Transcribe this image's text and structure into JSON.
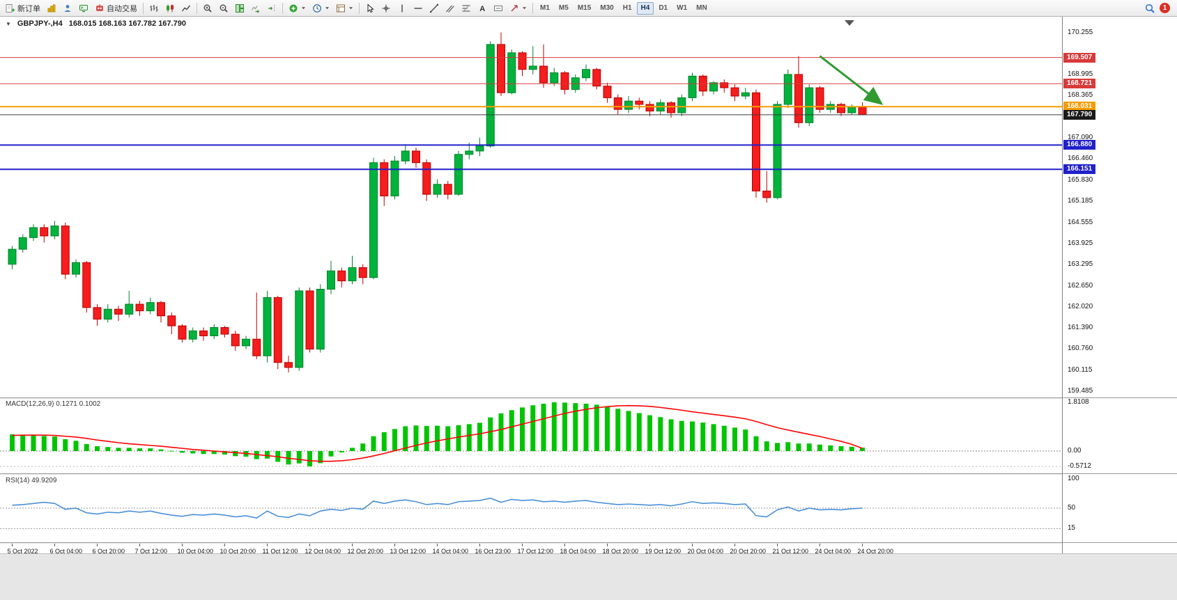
{
  "toolbar": {
    "new_order_label": "新订单",
    "auto_trading_label": "自动交易",
    "timeframes": [
      "M1",
      "M5",
      "M15",
      "M30",
      "H1",
      "H4",
      "D1",
      "W1",
      "MN"
    ],
    "active_timeframe": "H4",
    "notification_badge": "1"
  },
  "chart_data": {
    "type": "candlestick",
    "title_symbol": "GBPJPY-,H4",
    "ohlc_text": "168.015 168.163 167.782 167.790",
    "symbol": "GBPJPY-",
    "timeframe": "H4",
    "y_range": [
      159.3,
      170.65
    ],
    "x_label_step": 4,
    "x_labels": [
      "5 Oct 2022",
      "6 Oct 04:00",
      "6 Oct 20:00",
      "7 Oct 12:00",
      "10 Oct 04:00",
      "10 Oct 20:00",
      "11 Oct 12:00",
      "12 Oct 04:00",
      "12 Oct 20:00",
      "13 Oct 12:00",
      "14 Oct 04:00",
      "16 Oct 23:00",
      "17 Oct 12:00",
      "18 Oct 04:00",
      "18 Oct 20:00",
      "19 Oct 12:00",
      "20 Oct 04:00",
      "20 Oct 20:00",
      "21 Oct 12:00",
      "24 Oct 04:00",
      "24 Oct 20:00"
    ],
    "y_ticks": [
      "170.255",
      "168.995",
      "168.365",
      "167.090",
      "166.460",
      "165.830",
      "165.185",
      "164.555",
      "163.925",
      "163.295",
      "162.650",
      "162.020",
      "161.390",
      "160.760",
      "160.115",
      "159.485"
    ],
    "price_tags": [
      {
        "text": "169.507",
        "bg": "#d83a3a"
      },
      {
        "text": "168.721",
        "bg": "#d83a3a"
      },
      {
        "text": "168.031",
        "bg": "#f79c00"
      },
      {
        "text": "167.790",
        "bg": "#1a1a1a"
      },
      {
        "text": "166.880",
        "bg": "#2020cc"
      },
      {
        "text": "166.151",
        "bg": "#2020cc"
      }
    ],
    "h_lines": [
      {
        "price": 169.507,
        "color": "#d83a3a",
        "width": 1,
        "role": "resistance"
      },
      {
        "price": 168.721,
        "color": "#d83a3a",
        "width": 1,
        "role": "resistance"
      },
      {
        "price": 168.031,
        "color": "#f79c00",
        "width": 2,
        "role": "pivot"
      },
      {
        "price": 167.79,
        "color": "#3a3a3a",
        "width": 1,
        "role": "bid-price"
      },
      {
        "price": 166.88,
        "color": "#2020cc",
        "width": 2,
        "role": "support"
      },
      {
        "price": 166.151,
        "color": "#2020cc",
        "width": 2,
        "role": "support"
      }
    ],
    "arrow": {
      "from_i": 76,
      "from_p": 169.55,
      "to_i": 81.8,
      "to_p": 168.12,
      "color": "#2f9b2f"
    },
    "colors": {
      "bull": "#00b33c",
      "bull_border": "#00802b",
      "bear": "#f51d1d",
      "bear_border": "#b80000"
    },
    "candles": [
      [
        163.3,
        163.85,
        163.15,
        163.75
      ],
      [
        163.75,
        164.2,
        163.65,
        164.1
      ],
      [
        164.1,
        164.5,
        164.0,
        164.4
      ],
      [
        164.4,
        164.5,
        163.95,
        164.15
      ],
      [
        164.15,
        164.6,
        164.05,
        164.45
      ],
      [
        164.45,
        164.55,
        162.85,
        163.0
      ],
      [
        163.0,
        163.45,
        162.9,
        163.35
      ],
      [
        163.35,
        163.4,
        161.85,
        162.0
      ],
      [
        162.0,
        162.1,
        161.45,
        161.65
      ],
      [
        161.65,
        162.1,
        161.55,
        161.95
      ],
      [
        161.95,
        162.05,
        161.6,
        161.8
      ],
      [
        161.8,
        162.5,
        161.7,
        162.1
      ],
      [
        162.1,
        162.2,
        161.75,
        161.9
      ],
      [
        161.9,
        162.3,
        161.8,
        162.15
      ],
      [
        162.15,
        162.2,
        161.55,
        161.75
      ],
      [
        161.75,
        161.85,
        161.2,
        161.45
      ],
      [
        161.45,
        161.5,
        160.95,
        161.05
      ],
      [
        161.05,
        161.4,
        160.95,
        161.3
      ],
      [
        161.3,
        161.4,
        161.0,
        161.15
      ],
      [
        161.15,
        161.5,
        161.05,
        161.4
      ],
      [
        161.4,
        161.45,
        161.1,
        161.2
      ],
      [
        161.2,
        161.3,
        160.7,
        160.85
      ],
      [
        160.85,
        161.15,
        160.75,
        161.05
      ],
      [
        161.05,
        162.45,
        160.45,
        160.55
      ],
      [
        160.55,
        162.5,
        160.35,
        162.3
      ],
      [
        162.3,
        162.35,
        160.15,
        160.35
      ],
      [
        160.35,
        160.55,
        160.05,
        160.2
      ],
      [
        160.2,
        162.6,
        160.1,
        162.5
      ],
      [
        162.5,
        162.6,
        160.65,
        160.75
      ],
      [
        160.75,
        162.7,
        160.65,
        162.55
      ],
      [
        162.55,
        163.4,
        162.4,
        163.1
      ],
      [
        163.1,
        163.2,
        162.6,
        162.8
      ],
      [
        162.8,
        163.55,
        162.7,
        163.2
      ],
      [
        163.2,
        163.3,
        162.7,
        162.9
      ],
      [
        162.9,
        166.5,
        162.85,
        166.35
      ],
      [
        166.35,
        166.45,
        165.05,
        165.35
      ],
      [
        165.35,
        166.55,
        165.25,
        166.4
      ],
      [
        166.4,
        166.9,
        166.3,
        166.7
      ],
      [
        166.7,
        166.8,
        166.2,
        166.35
      ],
      [
        166.35,
        166.45,
        165.2,
        165.4
      ],
      [
        165.4,
        165.85,
        165.3,
        165.7
      ],
      [
        165.7,
        165.8,
        165.25,
        165.4
      ],
      [
        165.4,
        166.7,
        165.35,
        166.6
      ],
      [
        166.6,
        166.95,
        166.45,
        166.7
      ],
      [
        166.7,
        167.1,
        166.55,
        166.85
      ],
      [
        166.85,
        170.0,
        166.8,
        169.9
      ],
      [
        169.9,
        170.26,
        168.35,
        168.45
      ],
      [
        168.45,
        169.75,
        168.4,
        169.65
      ],
      [
        169.65,
        169.7,
        168.95,
        169.15
      ],
      [
        169.15,
        169.85,
        169.0,
        169.25
      ],
      [
        169.25,
        169.9,
        168.6,
        168.75
      ],
      [
        168.75,
        169.2,
        168.65,
        169.05
      ],
      [
        169.05,
        169.1,
        168.4,
        168.55
      ],
      [
        168.55,
        169.0,
        168.45,
        168.9
      ],
      [
        168.9,
        169.3,
        168.8,
        169.15
      ],
      [
        169.15,
        169.2,
        168.55,
        168.65
      ],
      [
        168.65,
        168.75,
        168.15,
        168.3
      ],
      [
        168.3,
        168.4,
        167.8,
        167.95
      ],
      [
        167.95,
        168.35,
        167.85,
        168.2
      ],
      [
        168.2,
        168.3,
        167.95,
        168.1
      ],
      [
        168.1,
        168.2,
        167.75,
        167.9
      ],
      [
        167.9,
        168.25,
        167.8,
        168.15
      ],
      [
        168.15,
        168.2,
        167.7,
        167.85
      ],
      [
        167.85,
        168.4,
        167.75,
        168.3
      ],
      [
        168.3,
        169.05,
        168.2,
        168.95
      ],
      [
        168.95,
        169.0,
        168.35,
        168.5
      ],
      [
        168.5,
        168.8,
        168.4,
        168.75
      ],
      [
        168.75,
        168.85,
        168.45,
        168.6
      ],
      [
        168.6,
        168.7,
        168.2,
        168.35
      ],
      [
        168.35,
        168.6,
        168.25,
        168.45
      ],
      [
        168.45,
        168.55,
        165.3,
        165.5
      ],
      [
        165.5,
        166.1,
        165.15,
        165.3
      ],
      [
        165.3,
        168.2,
        165.25,
        168.1
      ],
      [
        168.1,
        169.15,
        168.0,
        169.0
      ],
      [
        169.0,
        169.55,
        167.4,
        167.55
      ],
      [
        167.55,
        168.7,
        167.45,
        168.6
      ],
      [
        168.6,
        168.65,
        167.85,
        167.95
      ],
      [
        167.95,
        168.2,
        167.85,
        168.1
      ],
      [
        168.1,
        168.15,
        167.75,
        167.85
      ],
      [
        167.85,
        168.1,
        167.8,
        168.02
      ],
      [
        168.015,
        168.163,
        167.782,
        167.79
      ]
    ],
    "sub_indicators": [
      {
        "name": "MACD",
        "display": "MACD(12,26,9) 0.1271 0.1002",
        "scale_labels": [
          "1.8108",
          "0.00",
          "-0.5712"
        ],
        "histogram_color": "#00c400",
        "signal_color": "#ff0000",
        "histogram": [
          0.62,
          0.6,
          0.59,
          0.56,
          0.54,
          0.44,
          0.38,
          0.26,
          0.18,
          0.15,
          0.12,
          0.12,
          0.1,
          0.1,
          0.06,
          0.01,
          -0.06,
          -0.09,
          -0.11,
          -0.11,
          -0.13,
          -0.19,
          -0.21,
          -0.3,
          -0.28,
          -0.4,
          -0.5,
          -0.46,
          -0.5712,
          -0.45,
          -0.2,
          -0.05,
          0.12,
          0.28,
          0.55,
          0.7,
          0.82,
          0.92,
          0.95,
          0.93,
          0.94,
          0.92,
          0.96,
          1.0,
          1.05,
          1.25,
          1.4,
          1.52,
          1.62,
          1.7,
          1.76,
          1.8108,
          1.8,
          1.78,
          1.76,
          1.72,
          1.65,
          1.57,
          1.49,
          1.41,
          1.33,
          1.26,
          1.18,
          1.12,
          1.1,
          1.06,
          1.0,
          0.94,
          0.87,
          0.8,
          0.55,
          0.36,
          0.3,
          0.33,
          0.28,
          0.28,
          0.24,
          0.21,
          0.18,
          0.16,
          0.1271
        ],
        "signal": [
          0.58,
          0.59,
          0.595,
          0.59,
          0.58,
          0.55,
          0.52,
          0.47,
          0.41,
          0.36,
          0.31,
          0.27,
          0.24,
          0.21,
          0.18,
          0.14,
          0.1,
          0.06,
          0.03,
          0.0,
          -0.03,
          -0.06,
          -0.09,
          -0.13,
          -0.17,
          -0.21,
          -0.27,
          -0.31,
          -0.36,
          -0.38,
          -0.38,
          -0.36,
          -0.32,
          -0.26,
          -0.18,
          -0.09,
          0.01,
          0.11,
          0.21,
          0.3,
          0.38,
          0.45,
          0.52,
          0.58,
          0.64,
          0.72,
          0.8,
          0.9,
          1.0,
          1.1,
          1.2,
          1.3,
          1.4,
          1.48,
          1.55,
          1.61,
          1.65,
          1.68,
          1.69,
          1.68,
          1.66,
          1.62,
          1.57,
          1.52,
          1.46,
          1.41,
          1.36,
          1.31,
          1.26,
          1.2,
          1.1,
          0.98,
          0.87,
          0.78,
          0.7,
          0.62,
          0.54,
          0.45,
          0.36,
          0.25,
          0.1002
        ]
      },
      {
        "name": "RSI",
        "display": "RSI(14) 49.9209",
        "scale_labels": [
          "100",
          "50",
          "15"
        ],
        "levels": [
          50,
          15
        ],
        "line_color": "#4a90d9",
        "values": [
          55,
          56,
          58,
          60,
          58,
          48,
          50,
          42,
          40,
          43,
          42,
          45,
          43,
          45,
          41,
          38,
          36,
          39,
          38,
          40,
          38,
          35,
          37,
          33,
          45,
          36,
          34,
          40,
          37,
          45,
          48,
          46,
          50,
          48,
          62,
          58,
          62,
          64,
          61,
          56,
          58,
          56,
          61,
          62,
          63,
          67,
          60,
          65,
          63,
          64,
          61,
          62,
          60,
          62,
          63,
          60,
          58,
          56,
          57,
          56,
          55,
          56,
          54,
          57,
          61,
          58,
          59,
          58,
          56,
          57,
          37,
          35,
          47,
          52,
          45,
          50,
          47,
          48,
          47,
          49,
          49.9209
        ]
      }
    ]
  }
}
